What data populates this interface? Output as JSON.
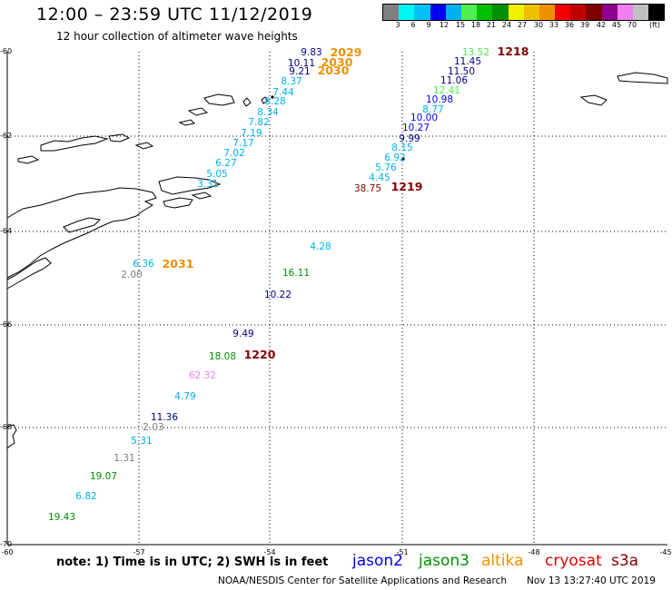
{
  "header": {
    "title": "12:00 – 23:59 UTC 11/12/2019",
    "subtitle": "12 hour collection of altimeter wave heights"
  },
  "colorbar": {
    "swatches": [
      "#808080",
      "#00f5f5",
      "#00c0f5",
      "#0000f0",
      "#00b0f0",
      "#50f050",
      "#00c000",
      "#009000",
      "#f0f000",
      "#f0c000",
      "#f09000",
      "#f00000",
      "#c00000",
      "#800000",
      "#900090",
      "#f080f0",
      "#c0c0c0",
      "#000000"
    ],
    "ticks": [
      "3",
      "6",
      "9",
      "12",
      "15",
      "18",
      "21",
      "24",
      "27",
      "30",
      "33",
      "36",
      "39",
      "42",
      "45",
      "70",
      "(ft)"
    ]
  },
  "axes": {
    "lat_labels": [
      "-60",
      "-62",
      "-64",
      "-66",
      "-68",
      "-70"
    ],
    "lon_labels": [
      "-60",
      "-57",
      "-54",
      "-51",
      "-48",
      "-45"
    ]
  },
  "passes": [
    {
      "label": "2029",
      "color": "#f09000"
    },
    {
      "label": "2030",
      "color": "#f09000"
    },
    {
      "label": "2030",
      "color": "#f09000"
    },
    {
      "label": "1218",
      "color": "#800000"
    },
    {
      "label": "1219",
      "color": "#800000"
    },
    {
      "label": "2031",
      "color": "#f09000"
    },
    {
      "label": "1220",
      "color": "#800000"
    }
  ],
  "observations": [
    {
      "value": "9.83",
      "color": "#000080"
    },
    {
      "value": "10.11",
      "color": "#000080"
    },
    {
      "value": "9.21",
      "color": "#000080"
    },
    {
      "value": "8.37",
      "color": "#00b0f0"
    },
    {
      "value": "7.44",
      "color": "#00b0f0"
    },
    {
      "value": "8.28",
      "color": "#00b0f0"
    },
    {
      "value": "8.34",
      "color": "#00b0f0"
    },
    {
      "value": "7.82",
      "color": "#00b0f0"
    },
    {
      "value": "7.19",
      "color": "#00b0f0"
    },
    {
      "value": "7.17",
      "color": "#00b0f0"
    },
    {
      "value": "7.02",
      "color": "#00b0f0"
    },
    {
      "value": "6.27",
      "color": "#00b0f0"
    },
    {
      "value": "5.05",
      "color": "#00b0f0"
    },
    {
      "value": "3.31",
      "color": "#00b0f0"
    },
    {
      "value": "13.52",
      "color": "#50f050"
    },
    {
      "value": "11.45",
      "color": "#000080"
    },
    {
      "value": "11.50",
      "color": "#000080"
    },
    {
      "value": "11.06",
      "color": "#000080"
    },
    {
      "value": "12.41",
      "color": "#50f050"
    },
    {
      "value": "10.98",
      "color": "#0000f0"
    },
    {
      "value": "8.77",
      "color": "#00b0f0"
    },
    {
      "value": "10.00",
      "color": "#0000f0"
    },
    {
      "value": "10.27",
      "color": "#0000f0"
    },
    {
      "value": "9.99",
      "color": "#000080"
    },
    {
      "value": "8.15",
      "color": "#00b0f0"
    },
    {
      "value": "6.92",
      "color": "#00b0f0"
    },
    {
      "value": "5.76",
      "color": "#00b0f0"
    },
    {
      "value": "4.45",
      "color": "#00b0f0"
    },
    {
      "value": "38.75",
      "color": "#800000"
    },
    {
      "value": "4.28",
      "color": "#00b0f0"
    },
    {
      "value": "6.36",
      "color": "#00b0f0"
    },
    {
      "value": "2.00",
      "color": "#808080"
    },
    {
      "value": "16.11",
      "color": "#009000"
    },
    {
      "value": "10.22",
      "color": "#000080"
    },
    {
      "value": "9.49",
      "color": "#000080"
    },
    {
      "value": "18.08",
      "color": "#009000"
    },
    {
      "value": "62.32",
      "color": "#f080f0"
    },
    {
      "value": "4.79",
      "color": "#00b0f0"
    },
    {
      "value": "11.36",
      "color": "#000080"
    },
    {
      "value": "2.03",
      "color": "#808080"
    },
    {
      "value": "5.31",
      "color": "#00b0f0"
    },
    {
      "value": "1.31",
      "color": "#808080"
    },
    {
      "value": "19.07",
      "color": "#009000"
    },
    {
      "value": "6.82",
      "color": "#00b0f0"
    },
    {
      "value": "19.43",
      "color": "#009000"
    }
  ],
  "footer": {
    "note": "note: 1) Time is in UTC; 2) SWH is in feet",
    "satellites": [
      {
        "name": "jason2",
        "color": "#0000e0"
      },
      {
        "name": "jason3",
        "color": "#009000"
      },
      {
        "name": "altika",
        "color": "#f09000"
      },
      {
        "name": "cryosat",
        "color": "#e00000"
      },
      {
        "name": "s3a",
        "color": "#800000"
      }
    ],
    "credit": "NOAA/NESDIS Center for Satellite Applications and Research",
    "timestamp": "Nov 13 13:27:40 UTC 2019"
  }
}
